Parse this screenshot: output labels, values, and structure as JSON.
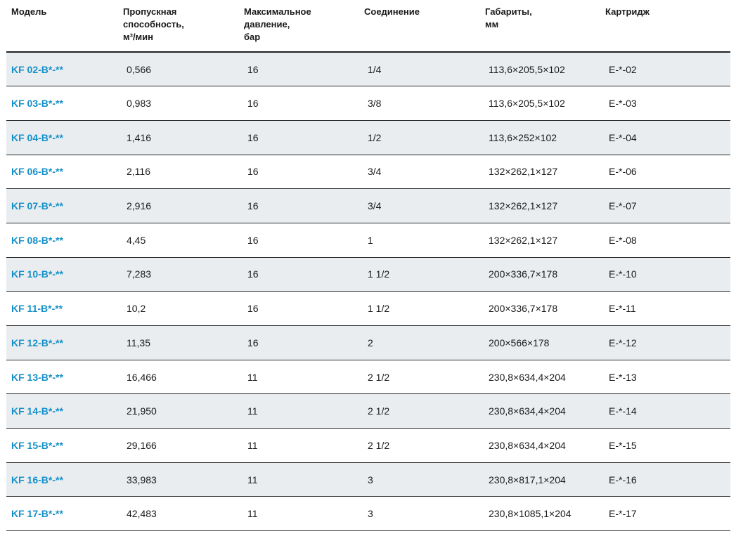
{
  "headers": {
    "model": "Модель",
    "flow_line1": "Пропускная",
    "flow_line2": "способность,",
    "flow_line3": "м³/мин",
    "pressure_line1": "Максимальное",
    "pressure_line2": "давление,",
    "pressure_line3": "бар",
    "connection": "Соединение",
    "dims_line1": "Габариты,",
    "dims_line2": "мм",
    "cartridge": "Картридж"
  },
  "rows": [
    {
      "model": "KF 02-B*-**",
      "flow": "0,566",
      "pressure": "16",
      "connection": "1/4",
      "dims": "113,6×205,5×102",
      "cartridge": "E-*-02"
    },
    {
      "model": "KF 03-B*-**",
      "flow": "0,983",
      "pressure": "16",
      "connection": "3/8",
      "dims": "113,6×205,5×102",
      "cartridge": "E-*-03"
    },
    {
      "model": "KF 04-B*-**",
      "flow": "1,416",
      "pressure": "16",
      "connection": "1/2",
      "dims": "113,6×252×102",
      "cartridge": "E-*-04"
    },
    {
      "model": "KF 06-B*-**",
      "flow": "2,116",
      "pressure": "16",
      "connection": "3/4",
      "dims": "132×262,1×127",
      "cartridge": "E-*-06"
    },
    {
      "model": "KF 07-B*-**",
      "flow": "2,916",
      "pressure": "16",
      "connection": "3/4",
      "dims": "132×262,1×127",
      "cartridge": "E-*-07"
    },
    {
      "model": "KF 08-B*-**",
      "flow": "4,45",
      "pressure": "16",
      "connection": "1",
      "dims": "132×262,1×127",
      "cartridge": "E-*-08"
    },
    {
      "model": "KF 10-B*-**",
      "flow": "7,283",
      "pressure": "16",
      "connection": "1 1/2",
      "dims": "200×336,7×178",
      "cartridge": "E-*-10"
    },
    {
      "model": "KF 11-B*-**",
      "flow": "10,2",
      "pressure": "16",
      "connection": "1 1/2",
      "dims": "200×336,7×178",
      "cartridge": "E-*-11"
    },
    {
      "model": "KF 12-B*-**",
      "flow": "11,35",
      "pressure": "16",
      "connection": "2",
      "dims": "200×566×178",
      "cartridge": "E-*-12"
    },
    {
      "model": "KF 13-B*-**",
      "flow": "16,466",
      "pressure": "11",
      "connection": "2 1/2",
      "dims": "230,8×634,4×204",
      "cartridge": "E-*-13"
    },
    {
      "model": "KF 14-B*-**",
      "flow": "21,950",
      "pressure": "11",
      "connection": "2 1/2",
      "dims": "230,8×634,4×204",
      "cartridge": "E-*-14"
    },
    {
      "model": "KF 15-B*-**",
      "flow": "29,166",
      "pressure": "11",
      "connection": "2 1/2",
      "dims": "230,8×634,4×204",
      "cartridge": "E-*-15"
    },
    {
      "model": "KF 16-B*-**",
      "flow": "33,983",
      "pressure": "11",
      "connection": "3",
      "dims": "230,8×817,1×204",
      "cartridge": "E-*-16"
    },
    {
      "model": "KF 17-B*-**",
      "flow": "42,483",
      "pressure": "11",
      "connection": "3",
      "dims": "230,8×1085,1×204",
      "cartridge": "E-*-17"
    }
  ],
  "colors": {
    "model_text": "#1590c8",
    "stripe": "#e9edf0",
    "rule": "#222222"
  }
}
